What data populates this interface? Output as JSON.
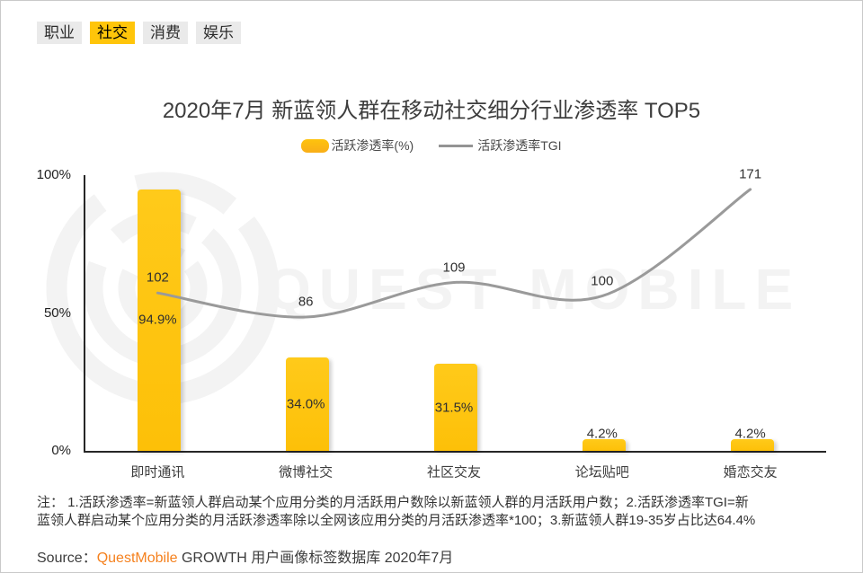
{
  "tabs": [
    {
      "label": "职业",
      "active": false
    },
    {
      "label": "社交",
      "active": true
    },
    {
      "label": "消费",
      "active": false
    },
    {
      "label": "娱乐",
      "active": false
    }
  ],
  "title": "2020年7月 新蓝领人群在移动社交细分行业渗透率 TOP5",
  "legend": {
    "bar_label": "活跃渗透率(%)",
    "line_label": "活跃渗透率TGI"
  },
  "chart_data": {
    "type": "bar",
    "subtype": "bar+line combo",
    "categories": [
      "即时通讯",
      "微博社交",
      "社区交友",
      "论坛贴吧",
      "婚恋交友"
    ],
    "series": [
      {
        "name": "活跃渗透率(%)",
        "type": "bar",
        "values": [
          94.9,
          34.0,
          31.5,
          4.2,
          4.2
        ],
        "labels": [
          "94.9%",
          "34.0%",
          "31.5%",
          "4.2%",
          "4.2%"
        ]
      },
      {
        "name": "活跃渗透率TGI",
        "type": "line",
        "values": [
          102,
          86,
          109,
          100,
          171
        ],
        "labels": [
          "102",
          "86",
          "109",
          "100",
          "171"
        ]
      }
    ],
    "title": "2020年7月 新蓝领人群在移动社交细分行业渗透率 TOP5",
    "xlabel": "",
    "ylabel": "",
    "y_axis": {
      "ticks": [
        "100%",
        "50%",
        "0%"
      ],
      "min": 0,
      "max": 100
    },
    "grid": false,
    "legend_position": "top-center"
  },
  "colors": {
    "bar": "#FEC30D",
    "line": "#9A9A9A",
    "tab_active_bg": "#FFC50A",
    "tab_bg": "#EAEAEA",
    "accent_orange": "#F5811E",
    "axis": "#262626",
    "watermark": "#F3F3F3"
  },
  "watermark": {
    "text": "QUEST MOBILE",
    "logo": "questmobile-logo"
  },
  "note": {
    "line1": "注： 1.活跃渗透率=新蓝领人群启动某个应用分类的月活跃用户数除以新蓝领人群的月活跃用户数；2.活跃渗透率TGI=新",
    "line2": "蓝领人群启动某个应用分类的月活跃渗透率除以全网该应用分类的月活跃渗透率*100；3.新蓝领人群19-35岁占比达64.4%"
  },
  "source": {
    "label": "Source：",
    "brand": "QuestMobile",
    "rest": " GROWTH 用户画像标签数据库 2020年7月"
  }
}
